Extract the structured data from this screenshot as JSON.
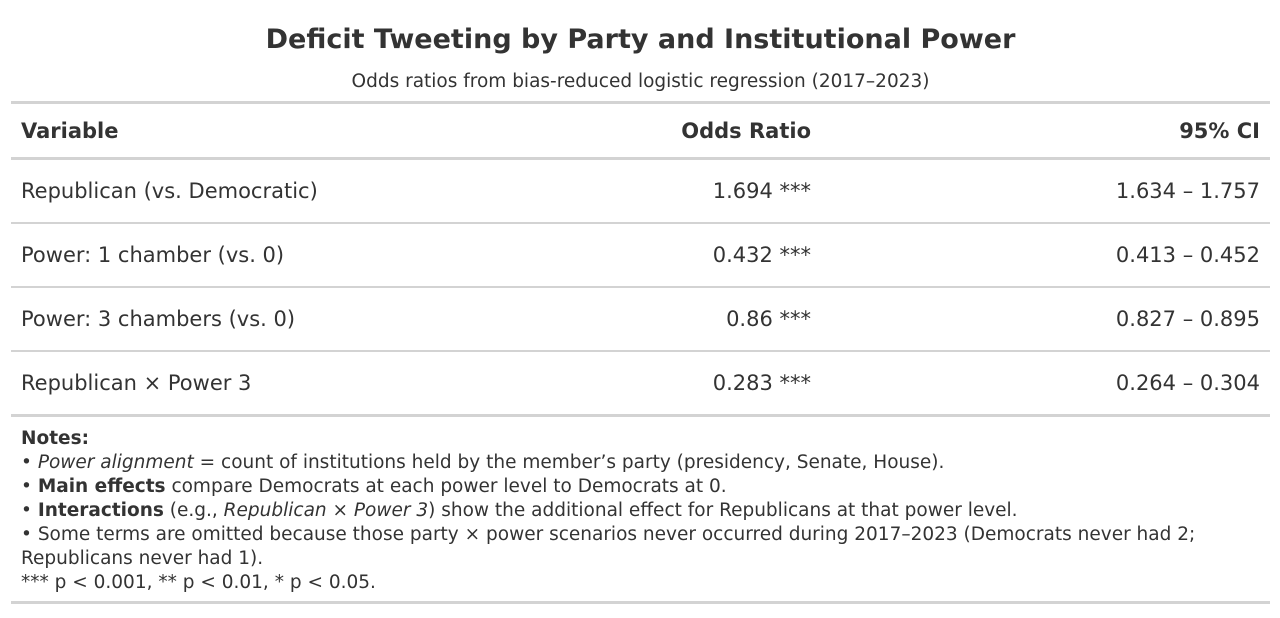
{
  "table": {
    "title": "Deficit Tweeting by Party and Institutional Power",
    "subtitle": "Odds ratios from bias-reduced logistic regression (2017–2023)",
    "columns": [
      "Variable",
      "Odds Ratio",
      "95% CI"
    ],
    "rows": [
      {
        "variable": "Republican (vs. Democratic)",
        "odds_ratio": "1.694 ***",
        "ci": "1.634 – 1.757"
      },
      {
        "variable": "Power: 1 chamber (vs. 0)",
        "odds_ratio": "0.432 ***",
        "ci": "0.413 – 0.452"
      },
      {
        "variable": "Power: 3 chambers (vs. 0)",
        "odds_ratio": "0.86 ***",
        "ci": "0.827 – 0.895"
      },
      {
        "variable": "Republican × Power 3",
        "odds_ratio": "0.283 ***",
        "ci": "0.264 – 0.304"
      }
    ]
  },
  "notes": {
    "heading": "Notes:",
    "bullet": "•",
    "n1_em": "Power alignment",
    "n1_rest": " = count of institutions held by the member’s party (presidency, Senate, House).",
    "n2_strong": "Main effects",
    "n2_rest": " compare Democrats at each power level to Democrats at 0.",
    "n3_strong": "Interactions",
    "n3_a": " (e.g., ",
    "n3_em": "Republican × Power 3",
    "n3_b": ") show the additional effect for Republicans at that power level.",
    "n4": "Some terms are omitted because those party × power scenarios never occurred during 2017–2023 (Democrats never had 2; Republicans never had 1).",
    "sig": "*** p < 0.001, ** p < 0.01, * p < 0.05."
  }
}
